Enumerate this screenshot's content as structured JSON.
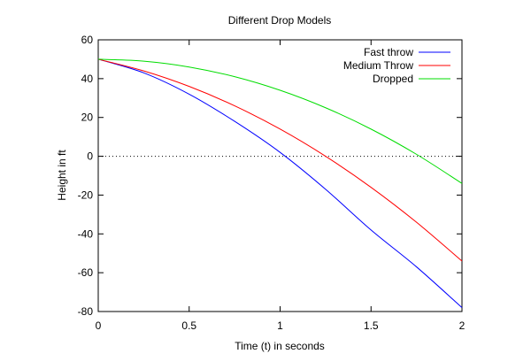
{
  "chart_data": {
    "type": "line",
    "title": "Different Drop Models",
    "xlabel": "Time (t) in seconds",
    "ylabel": "Height in ft",
    "xlim": [
      0,
      2
    ],
    "ylim": [
      -80,
      60
    ],
    "xticks": [
      0,
      0.5,
      1,
      1.5,
      2
    ],
    "xtick_labels": [
      "0",
      "0.5",
      "1",
      "1.5",
      "2"
    ],
    "yticks": [
      -80,
      -60,
      -40,
      -20,
      0,
      20,
      40,
      60
    ],
    "ytick_labels": [
      "-80",
      "-60",
      "-40",
      "-20",
      "0",
      "20",
      "40",
      "60"
    ],
    "grid": false,
    "legend_position": "top-right",
    "reference_line": {
      "y": 0,
      "style": "dotted"
    },
    "x": [
      0,
      0.25,
      0.5,
      0.75,
      1,
      1.25,
      1.5,
      1.75,
      2
    ],
    "series": [
      {
        "name": "Fast throw",
        "color": "#0000ff",
        "values": [
          50,
          43,
          32,
          18,
          2,
          -17,
          -38,
          -57,
          -78
        ]
      },
      {
        "name": "Medium Throw",
        "color": "#ff0000",
        "values": [
          50,
          44,
          36,
          26,
          14,
          0,
          -16,
          -34,
          -54
        ]
      },
      {
        "name": "Dropped",
        "color": "#00dd00",
        "values": [
          50,
          49,
          46,
          41,
          34,
          25,
          14,
          1,
          -14
        ]
      }
    ]
  }
}
